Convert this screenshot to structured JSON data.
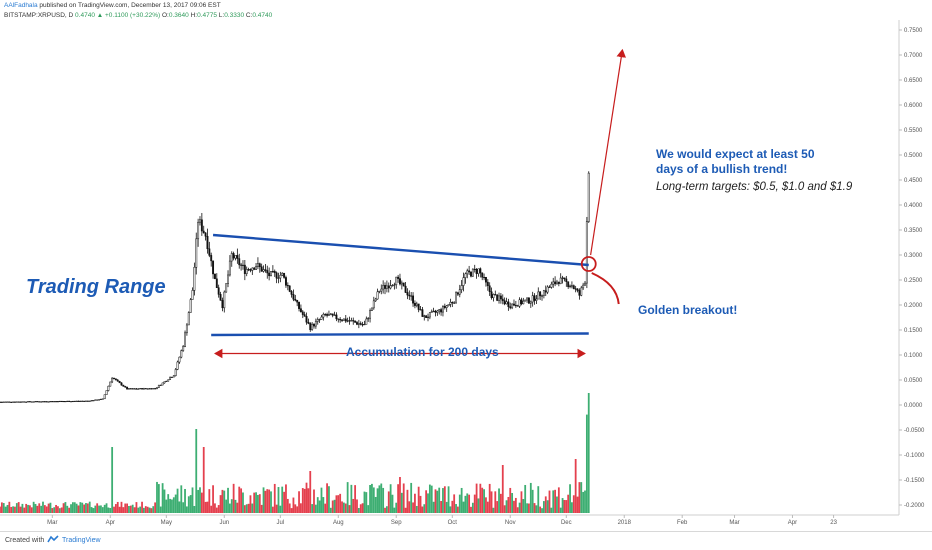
{
  "header": {
    "author": "AAlFadhala",
    "published": "published on TradingView.com, December 13, 2017 09:06 EST",
    "symbol": "BITSTAMP:XRPUSD, D",
    "last": "0.4740",
    "change": "+0.1100 (+30.22%)",
    "open_label": "O:",
    "open": "0.3640",
    "high_label": "H:",
    "high": "0.4775",
    "low_label": "L:",
    "low": "0.3330",
    "close_label": "C:",
    "close": "0.4740"
  },
  "footer": {
    "created": "Created with",
    "brand": "TradingView"
  },
  "colors": {
    "up": "#3dae72",
    "down": "#e4404e",
    "line": "#1a4fb0",
    "arrow": "#c71d1d",
    "text_blue": "#1d5bb5",
    "price": "#111111"
  },
  "chart_data": {
    "type": "candlestick",
    "title": "",
    "y_axis_side": "right",
    "ylim": [
      -0.22,
      0.77
    ],
    "y_ticks": [
      "0.7500",
      "0.7000",
      "0.6500",
      "0.6000",
      "0.5500",
      "0.5000",
      "0.4500",
      "0.4000",
      "0.3500",
      "0.3000",
      "0.2500",
      "0.2000",
      "0.1500",
      "0.1000",
      "0.0500",
      "0.0000",
      "-0.0500",
      "-0.1000",
      "-0.1500",
      "-0.2000"
    ],
    "y_tick_values": [
      0.75,
      0.7,
      0.65,
      0.6,
      0.55,
      0.5,
      0.45,
      0.4,
      0.35,
      0.3,
      0.25,
      0.2,
      0.15,
      0.1,
      0.05,
      0.0,
      -0.05,
      -0.1,
      -0.15,
      -0.2
    ],
    "x_start": "2017-02-01",
    "x_end": "2018-05-28",
    "x_ticks": [
      {
        "label": "Mar",
        "date": "2017-03-01"
      },
      {
        "label": "Apr",
        "date": "2017-04-01"
      },
      {
        "label": "May",
        "date": "2017-05-01"
      },
      {
        "label": "Jun",
        "date": "2017-06-01"
      },
      {
        "label": "Jul",
        "date": "2017-07-01"
      },
      {
        "label": "Aug",
        "date": "2017-08-01"
      },
      {
        "label": "Sep",
        "date": "2017-09-01"
      },
      {
        "label": "Oct",
        "date": "2017-10-01"
      },
      {
        "label": "Nov",
        "date": "2017-11-01"
      },
      {
        "label": "Dec",
        "date": "2017-12-01"
      },
      {
        "label": "2018",
        "date": "2018-01-01"
      },
      {
        "label": "Feb",
        "date": "2018-02-01"
      },
      {
        "label": "Mar",
        "date": "2018-03-01"
      },
      {
        "label": "Apr",
        "date": "2018-04-01"
      },
      {
        "label": "23",
        "date": "2018-04-23"
      }
    ],
    "price_path": [
      {
        "date": "2017-02-01",
        "price": 0.006
      },
      {
        "date": "2017-03-20",
        "price": 0.008
      },
      {
        "date": "2017-03-28",
        "price": 0.012
      },
      {
        "date": "2017-04-02",
        "price": 0.055
      },
      {
        "date": "2017-04-10",
        "price": 0.032
      },
      {
        "date": "2017-04-25",
        "price": 0.033
      },
      {
        "date": "2017-05-05",
        "price": 0.06
      },
      {
        "date": "2017-05-10",
        "price": 0.12
      },
      {
        "date": "2017-05-15",
        "price": 0.23
      },
      {
        "date": "2017-05-18",
        "price": 0.37
      },
      {
        "date": "2017-05-22",
        "price": 0.34
      },
      {
        "date": "2017-05-27",
        "price": 0.25
      },
      {
        "date": "2017-05-31",
        "price": 0.2
      },
      {
        "date": "2017-06-05",
        "price": 0.3
      },
      {
        "date": "2017-06-12",
        "price": 0.27
      },
      {
        "date": "2017-06-18",
        "price": 0.28
      },
      {
        "date": "2017-06-25",
        "price": 0.26
      },
      {
        "date": "2017-07-02",
        "price": 0.26
      },
      {
        "date": "2017-07-10",
        "price": 0.2
      },
      {
        "date": "2017-07-17",
        "price": 0.155
      },
      {
        "date": "2017-07-25",
        "price": 0.18
      },
      {
        "date": "2017-08-05",
        "price": 0.17
      },
      {
        "date": "2017-08-15",
        "price": 0.16
      },
      {
        "date": "2017-08-23",
        "price": 0.23
      },
      {
        "date": "2017-09-01",
        "price": 0.25
      },
      {
        "date": "2017-09-08",
        "price": 0.22
      },
      {
        "date": "2017-09-16",
        "price": 0.175
      },
      {
        "date": "2017-09-25",
        "price": 0.19
      },
      {
        "date": "2017-10-02",
        "price": 0.21
      },
      {
        "date": "2017-10-08",
        "price": 0.26
      },
      {
        "date": "2017-10-15",
        "price": 0.27
      },
      {
        "date": "2017-10-22",
        "price": 0.22
      },
      {
        "date": "2017-11-01",
        "price": 0.2
      },
      {
        "date": "2017-11-12",
        "price": 0.21
      },
      {
        "date": "2017-11-20",
        "price": 0.23
      },
      {
        "date": "2017-11-27",
        "price": 0.25
      },
      {
        "date": "2017-12-04",
        "price": 0.24
      },
      {
        "date": "2017-12-08",
        "price": 0.22
      },
      {
        "date": "2017-12-11",
        "price": 0.25
      },
      {
        "date": "2017-12-12",
        "price": 0.37
      },
      {
        "date": "2017-12-13",
        "price": 0.474
      }
    ],
    "volume_spikes": [
      {
        "date": "2017-04-02",
        "rel": 0.55
      },
      {
        "date": "2017-05-17",
        "rel": 0.7
      },
      {
        "date": "2017-05-21",
        "rel": 0.55
      },
      {
        "date": "2017-07-17",
        "rel": 0.35
      },
      {
        "date": "2017-09-03",
        "rel": 0.3
      },
      {
        "date": "2017-10-28",
        "rel": 0.4
      },
      {
        "date": "2017-12-06",
        "rel": 0.45
      },
      {
        "date": "2017-12-12",
        "rel": 0.82
      },
      {
        "date": "2017-12-13",
        "rel": 1.0
      }
    ],
    "annotations": {
      "trading_range": "Trading Range",
      "accumulation": "Accumulation for 200 days",
      "golden_breakout": "Golden breakout!",
      "expect_line1": "We would expect at least 50",
      "expect_line2": "days of a bullish trend!",
      "targets": "Long-term targets: $0.5, $1.0 and $1.9"
    },
    "trendlines": [
      {
        "name": "upper-resistance",
        "from": {
          "date": "2017-05-26",
          "price": 0.34
        },
        "to": {
          "date": "2017-12-13",
          "price": 0.28
        }
      },
      {
        "name": "lower-support",
        "from": {
          "date": "2017-05-25",
          "price": 0.14
        },
        "to": {
          "date": "2017-12-13",
          "price": 0.143
        }
      }
    ],
    "target_arrow": {
      "from": {
        "date": "2017-12-14",
        "price": 0.3
      },
      "to": {
        "date": "2017-12-31",
        "price": 0.71
      }
    },
    "accumulation_span": {
      "from": "2017-05-25",
      "to": "2017-12-13",
      "price": 0.103
    }
  }
}
